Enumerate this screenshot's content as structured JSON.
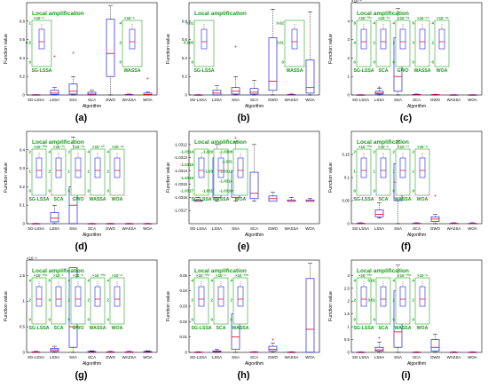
{
  "figure": {
    "local_title": "Local amplification",
    "xlabel": "Algorithm",
    "ylabel": "Function value",
    "algorithms": [
      "SG-LSSA",
      "LSSA",
      "SSA",
      "SCA",
      "GWO",
      "WASSA",
      "WOA"
    ]
  },
  "chart_data": [
    {
      "type": "box",
      "label": "(a)",
      "ylim": [
        0,
        1
      ],
      "y_multiplier": "",
      "yticks": [
        "0",
        "0.2",
        "0.4",
        "0.6",
        "0.8"
      ],
      "boxes": [
        {
          "q1": 0.0,
          "med": 0.0,
          "q3": 0.003,
          "wlo": 0.0,
          "whi": 0.004,
          "out": []
        },
        {
          "q1": 0.005,
          "med": 0.02,
          "q3": 0.05,
          "wlo": 0.0,
          "whi": 0.08,
          "out": [
            0.42
          ]
        },
        {
          "q1": 0.01,
          "med": 0.04,
          "q3": 0.12,
          "wlo": 0.0,
          "whi": 0.2,
          "out": [
            0.45
          ]
        },
        {
          "q1": 0.0,
          "med": 0.01,
          "q3": 0.03,
          "wlo": 0.0,
          "whi": 0.05,
          "out": []
        },
        {
          "q1": 0.2,
          "med": 0.45,
          "q3": 0.82,
          "wlo": 0.0,
          "whi": 0.97,
          "out": []
        },
        {
          "q1": 0.0,
          "med": 0.0,
          "q3": 0.005,
          "wlo": 0.0,
          "whi": 0.01,
          "out": []
        },
        {
          "q1": 0.0,
          "med": 0.005,
          "q3": 0.02,
          "wlo": 0.0,
          "whi": 0.03,
          "out": [
            0.18
          ]
        }
      ],
      "insets": [
        {
          "label": "SG-LSSA",
          "mult": "×10⁻⁶",
          "ticks": [
            "1",
            "0.5",
            "0"
          ]
        },
        {
          "label": "WASSA",
          "mult": "×10⁻⁵",
          "ticks": [
            "4",
            "2",
            "0"
          ]
        }
      ]
    },
    {
      "type": "box",
      "label": "(b)",
      "ylim": [
        0,
        1
      ],
      "y_multiplier": "",
      "yticks": [
        "0",
        "0.2",
        "0.4",
        "0.6",
        "0.8"
      ],
      "boxes": [
        {
          "q1": 0.0,
          "med": 0.0,
          "q3": 0.002,
          "wlo": 0.0,
          "whi": 0.004,
          "out": []
        },
        {
          "q1": 0.0,
          "med": 0.02,
          "q3": 0.05,
          "wlo": 0.0,
          "whi": 0.1,
          "out": []
        },
        {
          "q1": 0.01,
          "med": 0.04,
          "q3": 0.08,
          "wlo": 0.0,
          "whi": 0.2,
          "out": [
            0.52
          ]
        },
        {
          "q1": 0.01,
          "med": 0.03,
          "q3": 0.07,
          "wlo": 0.0,
          "whi": 0.16,
          "out": []
        },
        {
          "q1": 0.05,
          "med": 0.15,
          "q3": 0.62,
          "wlo": 0.0,
          "whi": 0.93,
          "out": []
        },
        {
          "q1": 0.0,
          "med": 0.0,
          "q3": 0.005,
          "wlo": 0.0,
          "whi": 0.01,
          "out": []
        },
        {
          "q1": 0.02,
          "med": 0.08,
          "q3": 0.38,
          "wlo": 0.0,
          "whi": 0.9,
          "out": []
        }
      ],
      "insets": [
        {
          "label": "SG-LSSA",
          "mult": "",
          "ticks": [
            "0.01",
            "0.005",
            "0"
          ]
        },
        {
          "label": "WASSA",
          "mult": "",
          "ticks": [
            "0.02",
            "0.01",
            "0"
          ]
        }
      ]
    },
    {
      "type": "box",
      "label": "(c)",
      "ylim": [
        0,
        5
      ],
      "y_multiplier": "×10⁻⁴",
      "yticks": [
        "0",
        "1",
        "2",
        "3",
        "4"
      ],
      "boxes": [
        {
          "q1": 0.0,
          "med": 0.0,
          "q3": 0.01,
          "wlo": 0.0,
          "whi": 0.02,
          "out": []
        },
        {
          "q1": 0.05,
          "med": 0.1,
          "q3": 0.2,
          "wlo": 0.0,
          "whi": 0.35,
          "out": [
            0.4
          ]
        },
        {
          "q1": 0.2,
          "med": 1.0,
          "q3": 3.1,
          "wlo": 0.0,
          "whi": 4.7,
          "out": []
        },
        {
          "q1": 0.0,
          "med": 0.01,
          "q3": 0.03,
          "wlo": 0.0,
          "whi": 0.05,
          "out": []
        },
        {
          "q1": 0.0,
          "med": 0.01,
          "q3": 0.02,
          "wlo": 0.0,
          "whi": 0.04,
          "out": []
        },
        {
          "q1": 0.0,
          "med": 0.0,
          "q3": 0.01,
          "wlo": 0.0,
          "whi": 0.02,
          "out": []
        },
        {
          "q1": 0.0,
          "med": 0.0,
          "q3": 0.01,
          "wlo": 0.0,
          "whi": 0.02,
          "out": []
        }
      ],
      "insets": [
        {
          "label": "SG-LSSA",
          "mult": "×10⁻¹⁰⁶",
          "ticks": [
            "8",
            "4",
            "0"
          ]
        },
        {
          "label": "SCA",
          "mult": "×10⁻³⁴",
          "ticks": [
            "4",
            "2",
            "0"
          ]
        },
        {
          "label": "GWO",
          "mult": "×10⁻²⁸",
          "ticks": [
            "4",
            "2",
            "0"
          ]
        },
        {
          "label": "WASSA",
          "mult": "×10⁻⁵⁷",
          "ticks": [
            "6",
            "3",
            "0"
          ]
        },
        {
          "label": "WOA",
          "mult": "×10⁻⁴⁵",
          "ticks": [
            "4",
            "2",
            "0"
          ]
        }
      ]
    },
    {
      "type": "box",
      "label": "(d)",
      "ylim": [
        0,
        0.5
      ],
      "y_multiplier": "",
      "yticks": [
        "0",
        "0.1",
        "0.2",
        "0.3",
        "0.4"
      ],
      "boxes": [
        {
          "q1": 0.0,
          "med": 0.0,
          "q3": 0.001,
          "wlo": 0.0,
          "whi": 0.002,
          "out": []
        },
        {
          "q1": 0.01,
          "med": 0.03,
          "q3": 0.06,
          "wlo": 0.0,
          "whi": 0.1,
          "out": [
            0.29
          ]
        },
        {
          "q1": 0.0,
          "med": 0.1,
          "q3": 0.2,
          "wlo": 0.0,
          "whi": 0.47,
          "out": []
        },
        {
          "q1": 0.0,
          "med": 0.0,
          "q3": 0.001,
          "wlo": 0.0,
          "whi": 0.002,
          "out": []
        },
        {
          "q1": 0.0,
          "med": 0.0,
          "q3": 0.001,
          "wlo": 0.0,
          "whi": 0.002,
          "out": []
        },
        {
          "q1": 0.0,
          "med": 0.0,
          "q3": 0.001,
          "wlo": 0.0,
          "whi": 0.002,
          "out": []
        },
        {
          "q1": 0.0,
          "med": 0.0,
          "q3": 0.001,
          "wlo": 0.0,
          "whi": 0.002,
          "out": []
        }
      ],
      "insets": [
        {
          "label": "SG-LSSA",
          "mult": "×10⁻¹⁰⁸",
          "ticks": [
            "2",
            "1",
            "0"
          ]
        },
        {
          "label": "SCA",
          "mult": "×10⁻³⁵",
          "ticks": [
            "4",
            "2",
            "0"
          ]
        },
        {
          "label": "GWO",
          "mult": "×10⁻²⁹",
          "ticks": [
            "2",
            "1",
            "0"
          ]
        },
        {
          "label": "WASSA",
          "mult": "×10⁻⁶⁰",
          "ticks": [
            "4",
            "2",
            "0"
          ]
        },
        {
          "label": "WOA",
          "mult": "×10⁻⁴⁶",
          "ticks": [
            "4",
            "2",
            "0"
          ]
        }
      ]
    },
    {
      "type": "box",
      "label": "(e)",
      "ylim": [
        -1.0318,
        -1.0311
      ],
      "y_multiplier": "",
      "yticks": [
        "-1.0317",
        "-1.0316",
        "-1.0315",
        "-1.0314",
        "-1.0313",
        "-1.0312"
      ],
      "boxes": [
        {
          "q1": -1.03163,
          "med": -1.03163,
          "q3": -1.03162,
          "wlo": -1.03163,
          "whi": -1.0316,
          "out": []
        },
        {
          "q1": -1.0316,
          "med": -1.03154,
          "q3": -1.0313,
          "wlo": -1.03163,
          "whi": -1.0312,
          "out": []
        },
        {
          "q1": -1.0316,
          "med": -1.03155,
          "q3": -1.0314,
          "wlo": -1.03163,
          "whi": -1.03118,
          "out": [
            -1.03115
          ]
        },
        {
          "q1": -1.03161,
          "med": -1.03157,
          "q3": -1.03141,
          "wlo": -1.03163,
          "whi": -1.0312,
          "out": []
        },
        {
          "q1": -1.03163,
          "med": -1.03161,
          "q3": -1.03159,
          "wlo": -1.03163,
          "whi": -1.03156,
          "out": []
        },
        {
          "q1": -1.03163,
          "med": -1.03163,
          "q3": -1.03162,
          "wlo": -1.03163,
          "whi": -1.0316,
          "out": []
        },
        {
          "q1": -1.03163,
          "med": -1.03163,
          "q3": -1.03162,
          "wlo": -1.03163,
          "whi": -1.03161,
          "out": []
        }
      ],
      "insets": [
        {
          "label": "SG-LSSA",
          "mult": "",
          "ticks": [
            "-1.0314",
            "-1.0315",
            "-1.0316",
            "-1.0317"
          ]
        },
        {
          "label": "WASSA",
          "mult": "",
          "ticks": [
            "-1.029",
            "-1.03",
            "-1.031"
          ]
        },
        {
          "label": "WOA",
          "mult": "",
          "ticks": [
            "-1.0308",
            "-1.031",
            "-1.0312",
            "-1.0314",
            "-1.0316"
          ]
        }
      ]
    },
    {
      "type": "box",
      "label": "(f)",
      "ylim": [
        0,
        0.2
      ],
      "y_multiplier": "",
      "yticks": [
        "0",
        "0.05",
        "0.1",
        "0.15"
      ],
      "boxes": [
        {
          "q1": 0.0,
          "med": 0.0,
          "q3": 0.001,
          "wlo": 0.0,
          "whi": 0.002,
          "out": []
        },
        {
          "q1": 0.015,
          "med": 0.02,
          "q3": 0.03,
          "wlo": 0.012,
          "whi": 0.045,
          "out": [
            0.095
          ]
        },
        {
          "q1": 0.05,
          "med": 0.09,
          "q3": 0.13,
          "wlo": 0.0,
          "whi": 0.18,
          "out": []
        },
        {
          "q1": 0.0,
          "med": 0.0,
          "q3": 0.001,
          "wlo": 0.0,
          "whi": 0.002,
          "out": []
        },
        {
          "q1": 0.005,
          "med": 0.01,
          "q3": 0.015,
          "wlo": 0.0,
          "whi": 0.02,
          "out": [
            0.06
          ]
        },
        {
          "q1": 0.0,
          "med": 0.0,
          "q3": 0.001,
          "wlo": 0.0,
          "whi": 0.002,
          "out": []
        },
        {
          "q1": 0.0,
          "med": 0.0,
          "q3": 0.001,
          "wlo": 0.0,
          "whi": 0.002,
          "out": []
        }
      ],
      "insets": [
        {
          "label": "SG-LSSA",
          "mult": "×10⁻¹⁰⁸",
          "ticks": [
            "2",
            "1",
            "0"
          ]
        },
        {
          "label": "SCA",
          "mult": "×10⁻⁴",
          "ticks": [
            "2",
            "1",
            "0"
          ]
        },
        {
          "label": "WASSA",
          "mult": "×10⁻¹⁷",
          "ticks": [
            "2",
            "1",
            "0"
          ]
        },
        {
          "label": "WOA",
          "mult": "×10⁻⁹",
          "ticks": [
            "2",
            "1",
            "0"
          ]
        }
      ]
    },
    {
      "type": "box",
      "label": "(g)",
      "ylim": [
        0,
        1.8
      ],
      "y_multiplier": "×10⁻⁵",
      "yticks": [
        "0",
        "0.5",
        "1",
        "1.5"
      ],
      "boxes": [
        {
          "q1": 0.0,
          "med": 0.0,
          "q3": 0.01,
          "wlo": 0.0,
          "whi": 0.02,
          "out": []
        },
        {
          "q1": 0.02,
          "med": 0.05,
          "q3": 0.08,
          "wlo": 0.0,
          "whi": 0.12,
          "out": []
        },
        {
          "q1": 0.1,
          "med": 0.5,
          "q3": 1.65,
          "wlo": 0.0,
          "whi": 1.65,
          "out": []
        },
        {
          "q1": 0.0,
          "med": 0.01,
          "q3": 0.02,
          "wlo": 0.0,
          "whi": 0.03,
          "out": []
        },
        {
          "q1": 0.0,
          "med": 0.0,
          "q3": 0.01,
          "wlo": 0.0,
          "whi": 0.02,
          "out": []
        },
        {
          "q1": 0.0,
          "med": 0.0,
          "q3": 0.01,
          "wlo": 0.0,
          "whi": 0.02,
          "out": []
        },
        {
          "q1": 0.0,
          "med": 0.01,
          "q3": 0.02,
          "wlo": 0.0,
          "whi": 0.03,
          "out": []
        }
      ],
      "insets": [
        {
          "label": "SG-LSSA",
          "mult": "×10⁻¹⁰⁸",
          "ticks": [
            "4",
            "2",
            "0"
          ]
        },
        {
          "label": "SCA",
          "mult": "×10⁻⁷",
          "ticks": [
            "6",
            "3",
            "0"
          ]
        },
        {
          "label": "GWO",
          "mult": "×10⁻⁸",
          "ticks": [
            "4",
            "2",
            "0"
          ]
        },
        {
          "label": "WASSA",
          "mult": "×10⁻¹⁰⁸",
          "ticks": [
            "4",
            "2",
            "0"
          ]
        },
        {
          "label": "WOA",
          "mult": "×10⁻⁸",
          "ticks": [
            "4",
            "2",
            "0"
          ]
        }
      ]
    },
    {
      "type": "box",
      "label": "(h)",
      "ylim": [
        0,
        0.06
      ],
      "y_multiplier": "",
      "yticks": [
        "0",
        "0.01",
        "0.02",
        "0.03",
        "0.04",
        "0.05"
      ],
      "boxes": [
        {
          "q1": 0.0,
          "med": 0.0,
          "q3": 0.0002,
          "wlo": 0.0,
          "whi": 0.0004,
          "out": []
        },
        {
          "q1": 0.0002,
          "med": 0.0005,
          "q3": 0.001,
          "wlo": 0.0,
          "whi": 0.002,
          "out": []
        },
        {
          "q1": 0.002,
          "med": 0.01,
          "q3": 0.025,
          "wlo": 0.0,
          "whi": 0.04,
          "out": []
        },
        {
          "q1": 0.0,
          "med": 0.0,
          "q3": 0.0003,
          "wlo": 0.0,
          "whi": 0.0005,
          "out": []
        },
        {
          "q1": 0.001,
          "med": 0.002,
          "q3": 0.004,
          "wlo": 0.0,
          "whi": 0.006,
          "out": [
            0.008
          ]
        },
        {
          "q1": 0.0,
          "med": 0.0,
          "q3": 0.0002,
          "wlo": 0.0,
          "whi": 0.0004,
          "out": []
        },
        {
          "q1": 0.0,
          "med": 0.015,
          "q3": 0.048,
          "wlo": 0.0,
          "whi": 0.058,
          "out": []
        }
      ],
      "insets": [
        {
          "label": "SG-LSSA",
          "mult": "×10⁻¹⁰⁸",
          "ticks": [
            "4",
            "2",
            "0"
          ]
        },
        {
          "label": "SCA",
          "mult": "×10⁻⁴",
          "ticks": [
            "4",
            "2",
            "0"
          ]
        },
        {
          "label": "WASSA",
          "mult": "×10⁻¹⁰⁸",
          "ticks": [
            "4",
            "2",
            "0"
          ]
        }
      ]
    },
    {
      "type": "box",
      "label": "(i)",
      "ylim": [
        0,
        3.6
      ],
      "y_multiplier": "",
      "yticks": [
        "0",
        "0.5",
        "1",
        "1.5",
        "2",
        "2.5",
        "3"
      ],
      "boxes": [
        {
          "q1": 0.0,
          "med": 0.0,
          "q3": 0.01,
          "wlo": 0.0,
          "whi": 0.02,
          "out": []
        },
        {
          "q1": 0.05,
          "med": 0.1,
          "q3": 0.2,
          "wlo": 0.0,
          "whi": 0.4,
          "out": [
            0.55
          ]
        },
        {
          "q1": 0.2,
          "med": 0.8,
          "q3": 2.4,
          "wlo": 0.0,
          "whi": 3.4,
          "out": []
        },
        {
          "q1": 0.0,
          "med": 0.0,
          "q3": 0.01,
          "wlo": 0.0,
          "whi": 0.02,
          "out": []
        },
        {
          "q1": 0.05,
          "med": 0.2,
          "q3": 0.5,
          "wlo": 0.0,
          "whi": 0.7,
          "out": []
        },
        {
          "q1": 0.0,
          "med": 0.0,
          "q3": 0.01,
          "wlo": 0.0,
          "whi": 0.02,
          "out": []
        },
        {
          "q1": 0.0,
          "med": 0.0,
          "q3": 0.01,
          "wlo": 0.0,
          "whi": 0.02,
          "out": []
        }
      ],
      "insets": [
        {
          "label": "SG-LSSA",
          "mult": "×10⁻¹⁰⁸",
          "ticks": [
            "4",
            "2",
            "0"
          ]
        },
        {
          "label": "SCA",
          "mult": "",
          "ticks": [
            "0.02",
            "0.01",
            "0"
          ]
        },
        {
          "label": "WASSA",
          "mult": "×10⁻¹⁰⁸",
          "ticks": [
            "4",
            "2",
            "0"
          ]
        },
        {
          "label": "WOA",
          "mult": "×10⁻⁸",
          "ticks": [
            "4",
            "2",
            "0"
          ]
        }
      ]
    }
  ]
}
